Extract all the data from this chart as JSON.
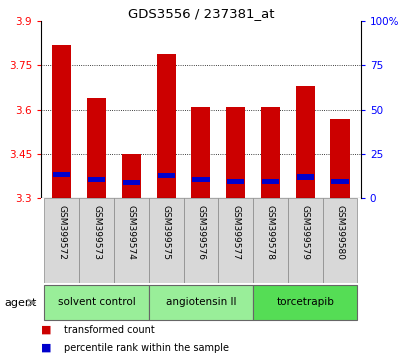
{
  "title": "GDS3556 / 237381_at",
  "samples": [
    "GSM399572",
    "GSM399573",
    "GSM399574",
    "GSM399575",
    "GSM399576",
    "GSM399577",
    "GSM399578",
    "GSM399579",
    "GSM399580"
  ],
  "transformed_count": [
    3.82,
    3.64,
    3.45,
    3.79,
    3.61,
    3.61,
    3.61,
    3.68,
    3.57
  ],
  "percentile_rank_pct": [
    13.5,
    10.5,
    9.0,
    13.0,
    10.5,
    9.5,
    9.5,
    12.0,
    9.5
  ],
  "ymin": 3.3,
  "ymax": 3.9,
  "yticks": [
    3.3,
    3.45,
    3.6,
    3.75,
    3.9
  ],
  "ytick_labels": [
    "3.3",
    "3.45",
    "3.6",
    "3.75",
    "3.9"
  ],
  "right_yticks": [
    0,
    25,
    50,
    75,
    100
  ],
  "right_ytick_labels": [
    "0",
    "25",
    "50",
    "75",
    "100%"
  ],
  "bar_color": "#cc0000",
  "percentile_color": "#0000cc",
  "groups": [
    {
      "label": "solvent control",
      "samples": [
        0,
        1,
        2
      ],
      "color": "#99ee99"
    },
    {
      "label": "angiotensin II",
      "samples": [
        3,
        4,
        5
      ],
      "color": "#99ee99"
    },
    {
      "label": "torcetrapib",
      "samples": [
        6,
        7,
        8
      ],
      "color": "#55dd55"
    }
  ],
  "agent_label": "agent",
  "legend_items": [
    {
      "label": "transformed count",
      "color": "#cc0000"
    },
    {
      "label": "percentile rank within the sample",
      "color": "#0000cc"
    }
  ],
  "bar_width": 0.55
}
